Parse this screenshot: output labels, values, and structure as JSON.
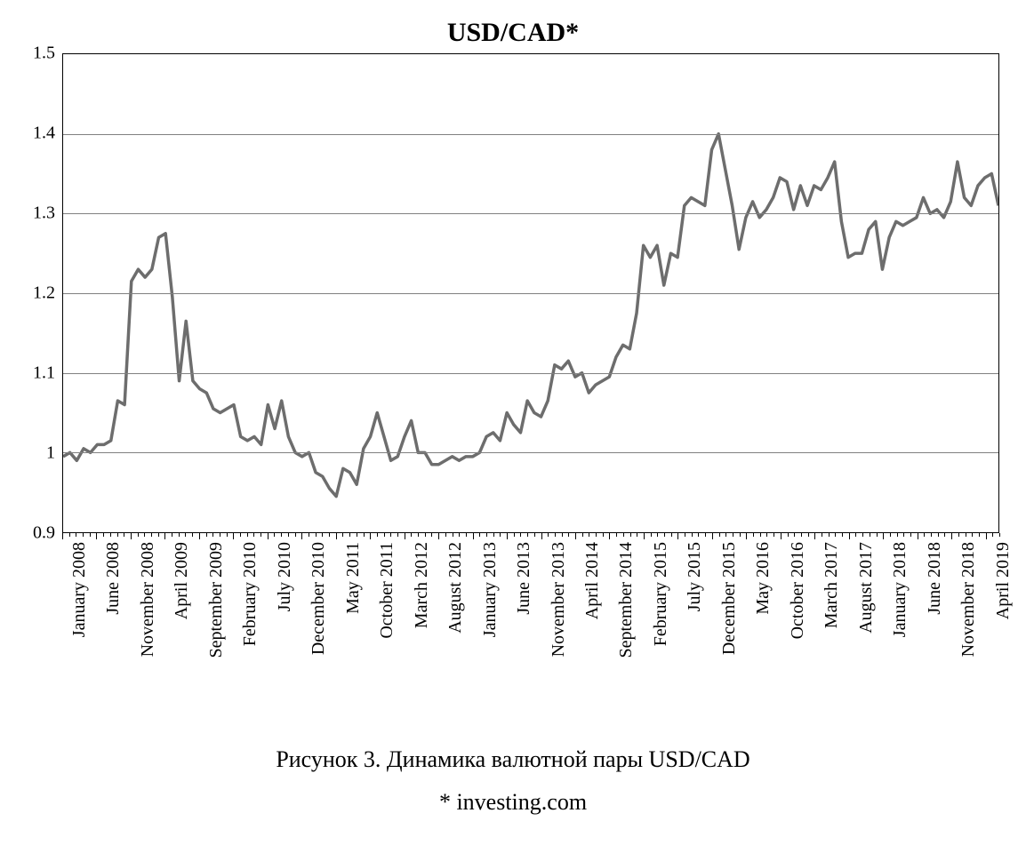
{
  "chart": {
    "type": "line",
    "title": "USD/CAD*",
    "title_fontsize": 30,
    "background_color": "#ffffff",
    "grid_color": "#808080",
    "border_color": "#000000",
    "line_color": "#6d6d6d",
    "line_width": 3.5,
    "ylim": [
      0.9,
      1.5
    ],
    "yticks": [
      0.9,
      1.0,
      1.1,
      1.2,
      1.3,
      1.4,
      1.5
    ],
    "ytick_labels": [
      "0.9",
      "1",
      "1.1",
      "1.2",
      "1.3",
      "1.4",
      "1.5"
    ],
    "axis_fontsize": 20,
    "n_points": 138,
    "tick_minor_height": 4,
    "tick_major_height": 7,
    "xlabel_fontsize": 20,
    "xlabels": [
      {
        "i": 0,
        "text": "January 2008"
      },
      {
        "i": 5,
        "text": "June 2008"
      },
      {
        "i": 10,
        "text": "November 2008"
      },
      {
        "i": 15,
        "text": "April 2009"
      },
      {
        "i": 20,
        "text": "September 2009"
      },
      {
        "i": 25,
        "text": "February 2010"
      },
      {
        "i": 30,
        "text": "July 2010"
      },
      {
        "i": 35,
        "text": "December 2010"
      },
      {
        "i": 40,
        "text": "May 2011"
      },
      {
        "i": 45,
        "text": "October 2011"
      },
      {
        "i": 50,
        "text": "March 2012"
      },
      {
        "i": 55,
        "text": "August 2012"
      },
      {
        "i": 60,
        "text": "January 2013"
      },
      {
        "i": 65,
        "text": "June 2013"
      },
      {
        "i": 70,
        "text": "November 2013"
      },
      {
        "i": 75,
        "text": "April 2014"
      },
      {
        "i": 80,
        "text": "September 2014"
      },
      {
        "i": 85,
        "text": "February 2015"
      },
      {
        "i": 90,
        "text": "July 2015"
      },
      {
        "i": 95,
        "text": "December 2015"
      },
      {
        "i": 100,
        "text": "May 2016"
      },
      {
        "i": 105,
        "text": "October 2016"
      },
      {
        "i": 110,
        "text": "March 2017"
      },
      {
        "i": 115,
        "text": "August 2017"
      },
      {
        "i": 120,
        "text": "January 2018"
      },
      {
        "i": 125,
        "text": "June 2018"
      },
      {
        "i": 130,
        "text": "November 2018"
      },
      {
        "i": 135,
        "text": "April 2019"
      }
    ],
    "values": [
      0.995,
      1.0,
      0.99,
      1.005,
      1.0,
      1.01,
      1.01,
      1.015,
      1.065,
      1.06,
      1.215,
      1.23,
      1.22,
      1.23,
      1.27,
      1.275,
      1.195,
      1.09,
      1.165,
      1.09,
      1.08,
      1.075,
      1.055,
      1.05,
      1.055,
      1.06,
      1.02,
      1.015,
      1.02,
      1.01,
      1.06,
      1.03,
      1.065,
      1.02,
      1.0,
      0.995,
      1.0,
      0.975,
      0.97,
      0.955,
      0.945,
      0.98,
      0.975,
      0.96,
      1.005,
      1.02,
      1.05,
      1.02,
      0.99,
      0.995,
      1.02,
      1.04,
      1.0,
      1.0,
      0.985,
      0.985,
      0.99,
      0.995,
      0.99,
      0.995,
      0.995,
      1.0,
      1.02,
      1.025,
      1.015,
      1.05,
      1.035,
      1.025,
      1.065,
      1.05,
      1.045,
      1.065,
      1.11,
      1.105,
      1.115,
      1.095,
      1.1,
      1.075,
      1.085,
      1.09,
      1.095,
      1.12,
      1.135,
      1.13,
      1.175,
      1.26,
      1.245,
      1.26,
      1.21,
      1.25,
      1.245,
      1.31,
      1.32,
      1.315,
      1.31,
      1.38,
      1.4,
      1.355,
      1.31,
      1.255,
      1.295,
      1.315,
      1.295,
      1.305,
      1.32,
      1.345,
      1.34,
      1.305,
      1.335,
      1.31,
      1.335,
      1.33,
      1.345,
      1.365,
      1.29,
      1.245,
      1.25,
      1.25,
      1.28,
      1.29,
      1.23,
      1.27,
      1.29,
      1.285,
      1.29,
      1.295,
      1.32,
      1.3,
      1.305,
      1.295,
      1.315,
      1.365,
      1.32,
      1.31,
      1.335,
      1.345,
      1.35,
      1.31
    ]
  },
  "caption": "Рисунок 3. Динамика валютной пары USD/CAD",
  "source": "* investing.com"
}
